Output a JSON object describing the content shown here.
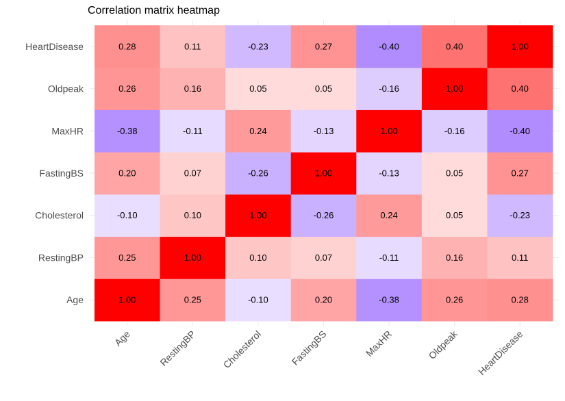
{
  "chart_data": {
    "type": "heatmap",
    "title": "Correlation matrix heatmap",
    "xlabel": "",
    "ylabel": "",
    "x_categories": [
      "Age",
      "RestingBP",
      "Cholesterol",
      "FastingBS",
      "MaxHR",
      "Oldpeak",
      "HeartDisease"
    ],
    "y_categories": [
      "Age",
      "RestingBP",
      "Cholesterol",
      "FastingBS",
      "MaxHR",
      "Oldpeak",
      "HeartDisease"
    ],
    "values": [
      [
        1.0,
        0.25,
        -0.1,
        0.2,
        -0.38,
        0.26,
        0.28
      ],
      [
        0.25,
        1.0,
        0.1,
        0.07,
        -0.11,
        0.16,
        0.11
      ],
      [
        -0.1,
        0.1,
        1.0,
        -0.26,
        0.24,
        0.05,
        -0.23
      ],
      [
        0.2,
        0.07,
        -0.26,
        1.0,
        -0.13,
        0.05,
        0.27
      ],
      [
        -0.38,
        -0.11,
        0.24,
        -0.13,
        1.0,
        -0.16,
        -0.4
      ],
      [
        0.26,
        0.16,
        0.05,
        0.05,
        -0.16,
        1.0,
        0.4
      ],
      [
        0.28,
        0.11,
        -0.23,
        0.27,
        -0.4,
        0.4,
        1.0
      ]
    ],
    "labels": [
      [
        "1.00",
        "0.25",
        "-0.10",
        "0.20",
        "-0.38",
        "0.26",
        "0.28"
      ],
      [
        "0.25",
        "1.00",
        "0.10",
        "0.07",
        "-0.11",
        "0.16",
        "0.11"
      ],
      [
        "-0.10",
        "0.10",
        "1.00",
        "-0.26",
        "0.24",
        "0.05",
        "-0.23"
      ],
      [
        "0.20",
        "0.07",
        "-0.26",
        "1.00",
        "-0.13",
        "0.05",
        "0.27"
      ],
      [
        "-0.38",
        "-0.11",
        "0.24",
        "-0.13",
        "1.00",
        "-0.16",
        "-0.40"
      ],
      [
        "0.26",
        "0.16",
        "0.05",
        "0.05",
        "-0.16",
        "1.00",
        "0.40"
      ],
      [
        "0.28",
        "0.11",
        "-0.23",
        "0.27",
        "-0.40",
        "0.40",
        "1.00"
      ]
    ],
    "color_scale": {
      "low": "#b18cff",
      "mid": "#ffffff",
      "high": "#ff0000",
      "low_value": -0.4,
      "mid_value": 0,
      "high_value": 1
    },
    "grid": true,
    "legend": "none"
  }
}
